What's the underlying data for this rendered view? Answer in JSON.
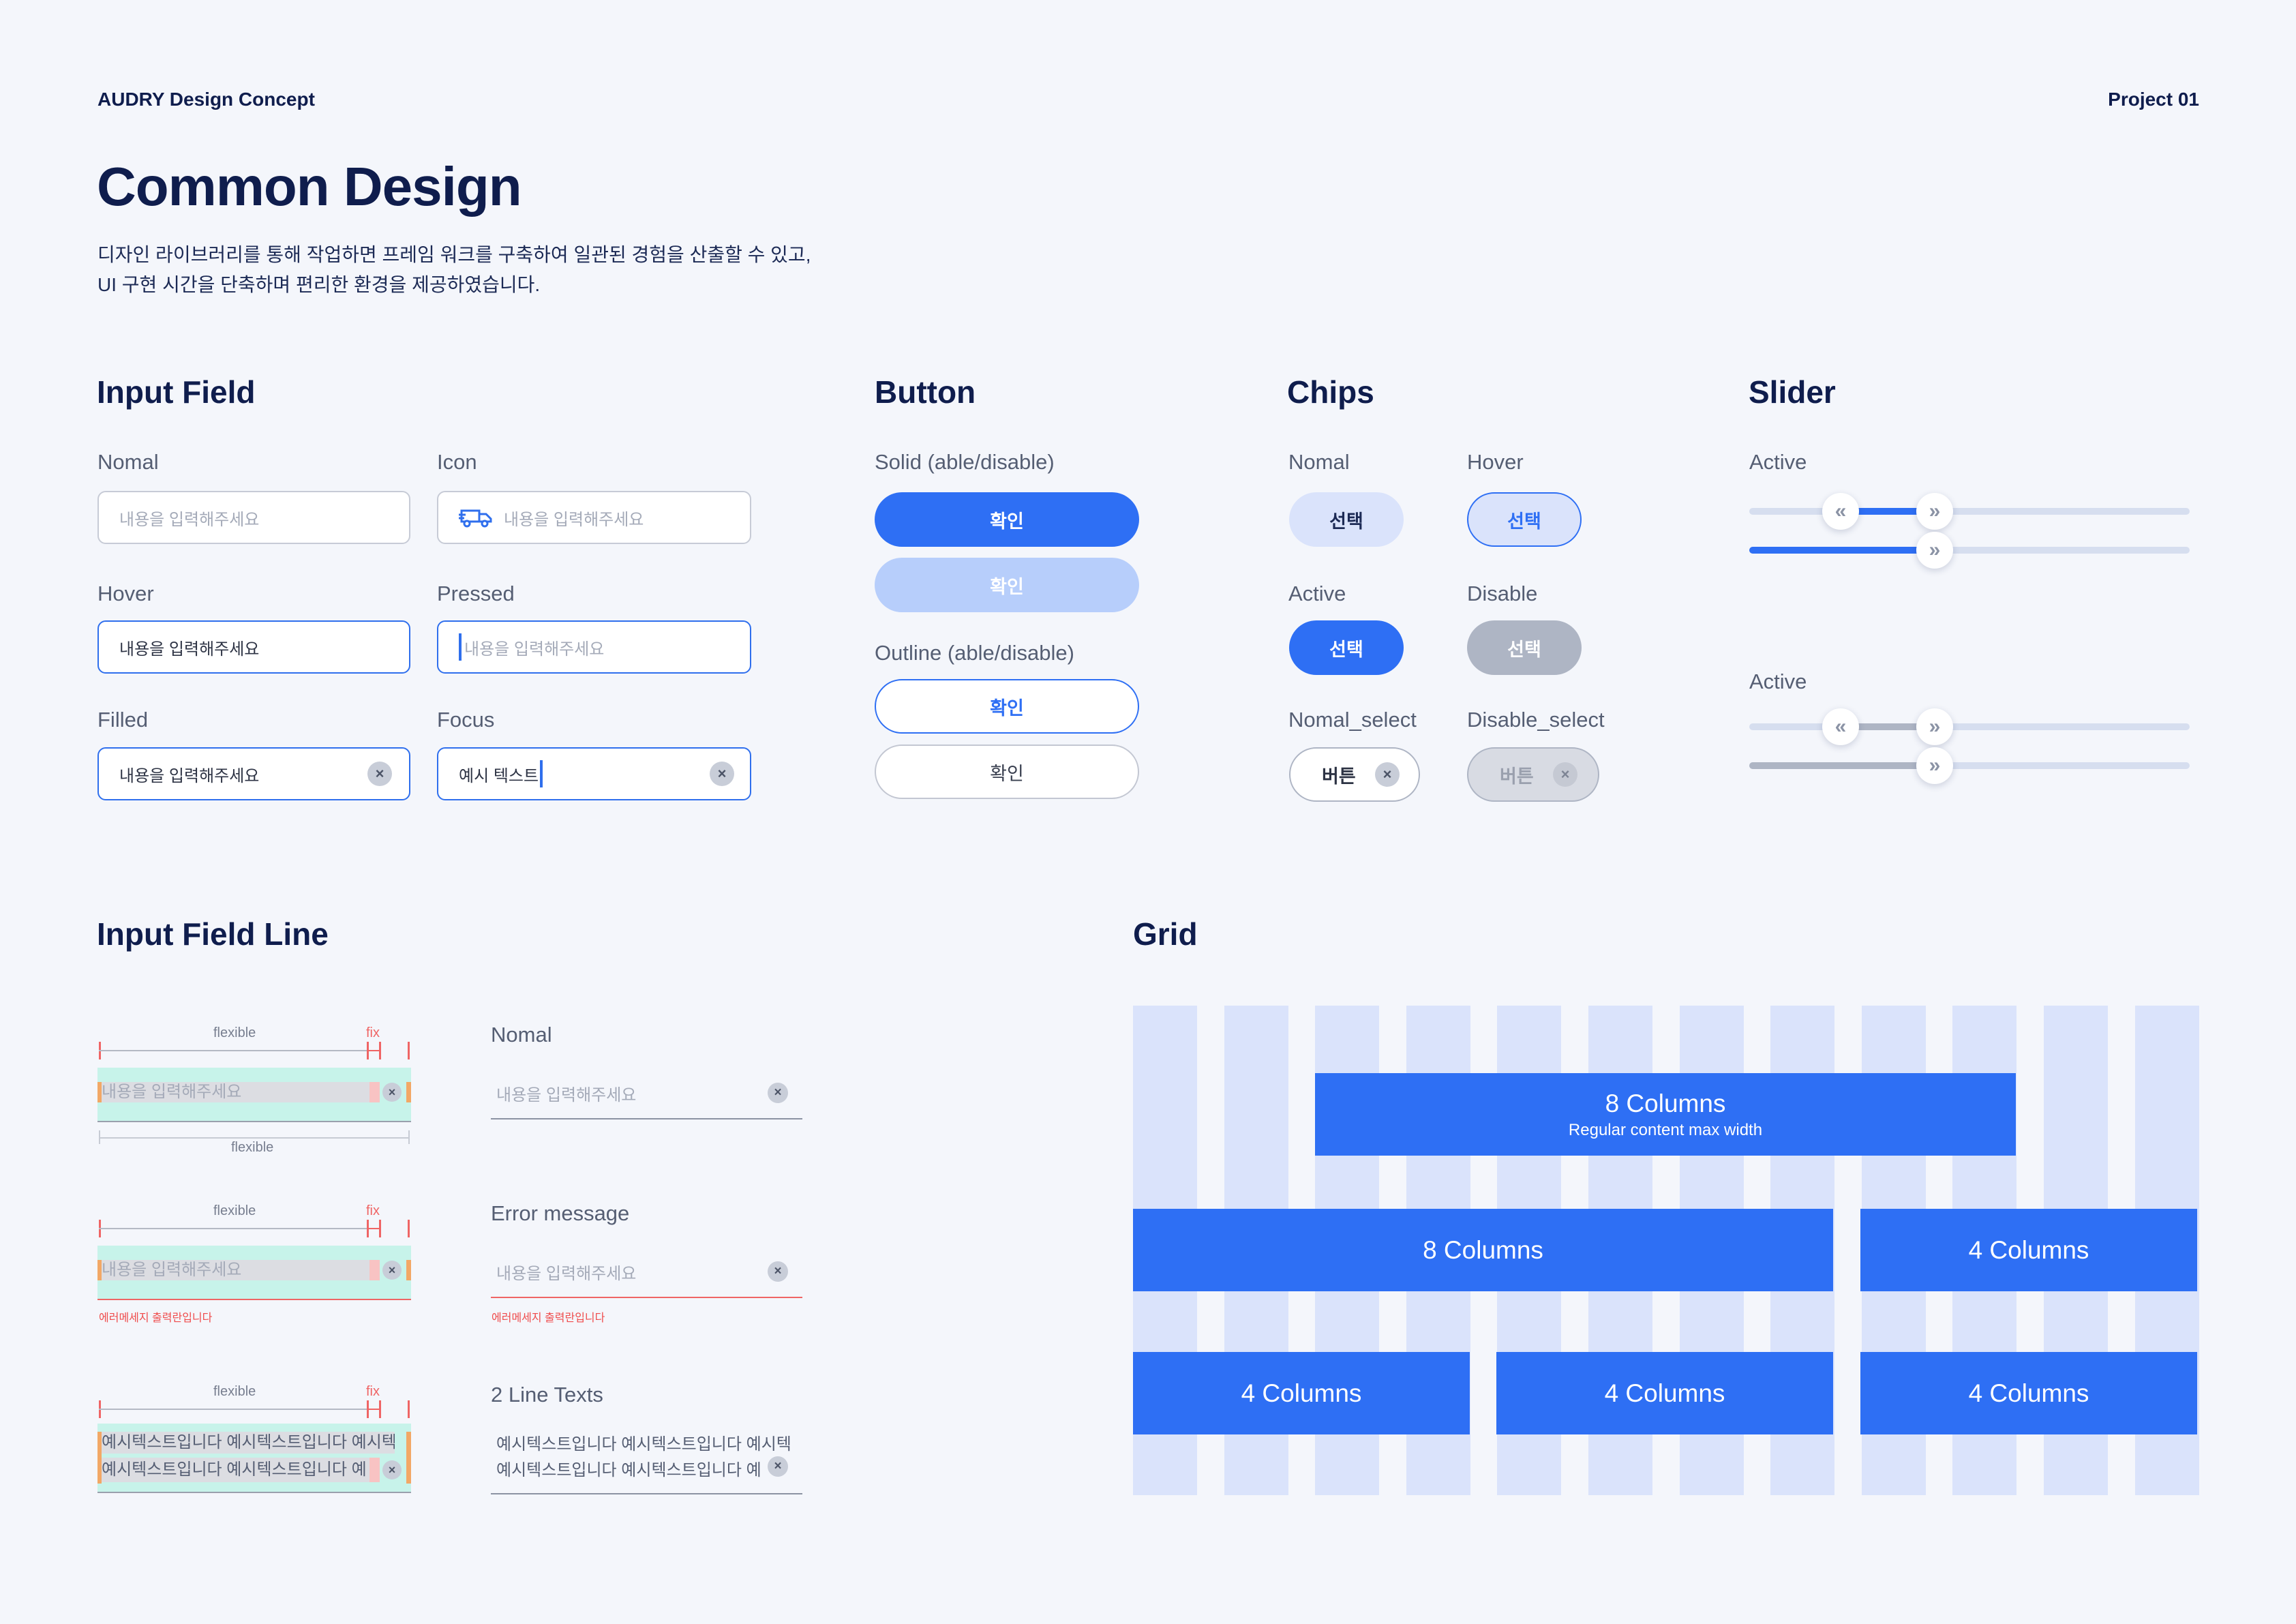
{
  "header": {
    "brand": "AUDRY Design Concept",
    "project": "Project 01"
  },
  "page": {
    "title": "Common Design",
    "desc_line1": "디자인 라이브러리를 통해 작업하면 프레임 워크를 구축하여 일관된 경험을 산출할 수 있고,",
    "desc_line2": "UI 구현 시간을 단축하며 편리한 환경을 제공하였습니다."
  },
  "input_field": {
    "title": "Input Field",
    "nomal_label": "Nomal",
    "icon_label": "Icon",
    "hover_label": "Hover",
    "pressed_label": "Pressed",
    "filled_label": "Filled",
    "focus_label": "Focus",
    "placeholder": "내용을 입력해주세요",
    "value": "내용을 입력해주세요",
    "focus_value": "예시 텍스트"
  },
  "button": {
    "title": "Button",
    "solid_label": "Solid (able/disable)",
    "outline_label": "Outline (able/disable)",
    "confirm": "확인"
  },
  "chips": {
    "title": "Chips",
    "nomal": "Nomal",
    "hover": "Hover",
    "active": "Active",
    "disable": "Disable",
    "nomal_select": "Nomal_select",
    "disable_select": "Disable_select",
    "select": "선택",
    "button_text": "버튼"
  },
  "slider": {
    "title": "Slider",
    "active1": "Active",
    "active2": "Active"
  },
  "line_field": {
    "title": "Input Field Line",
    "flexible": "flexible",
    "fix": "fix",
    "placeholder": "내용을 입력해주세요",
    "error": "에러메세지 출력란입니다",
    "nomal_label": "Nomal",
    "error_label": "Error message",
    "two_line_label": "2 Line Texts",
    "two_line_1": "예시텍스트입니다 예시텍스트입니다  예시텍",
    "two_line_2": "예시텍스트입니다 예시텍스트입니다  예"
  },
  "grid": {
    "title": "Grid",
    "bar1_title": "8 Columns",
    "bar1_sub": "Regular content max width",
    "bar2": "8 Columns",
    "bar3": "4 Columns",
    "bar4": "4 Columns",
    "bar5": "4 Columns",
    "bar6": "4 Columns",
    "column_count": 12
  },
  "colors": {
    "primary": "#2e6ff4",
    "navy": "#0f1d4d",
    "grid_col": "#dae3fb",
    "error": "#ef4b4b",
    "background": "#f4f6fb"
  },
  "icons": [
    "truck-icon",
    "clear-icon",
    "chevron-double-left-icon",
    "chevron-double-right-icon"
  ]
}
